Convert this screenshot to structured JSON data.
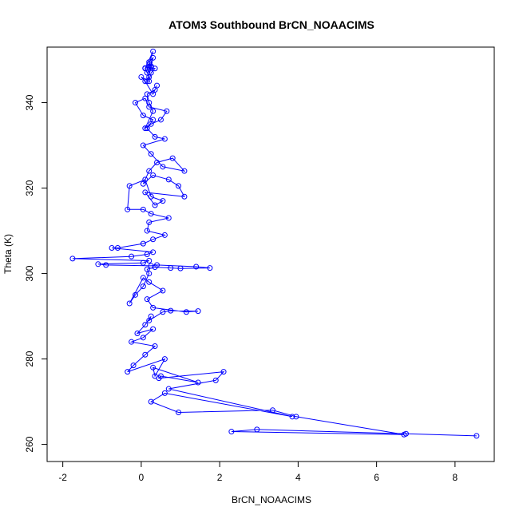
{
  "chart_data": {
    "type": "line",
    "title": "ATOM3 Southbound BrCN_NOAACIMS",
    "xlabel": "BrCN_NOAACIMS",
    "ylabel": "Theta (K)",
    "xlim": [
      -2.4,
      9.0
    ],
    "ylim": [
      256,
      353
    ],
    "x_ticks": [
      -2,
      0,
      2,
      4,
      6,
      8
    ],
    "y_ticks": [
      260,
      280,
      300,
      320,
      340
    ],
    "x_tick_labels": [
      "-2",
      "0",
      "2",
      "4",
      "6",
      "8"
    ],
    "y_tick_labels": [
      "260",
      "280",
      "300",
      "320",
      "340"
    ],
    "grid": false,
    "marker": "open-circle",
    "series": [
      {
        "color": "#0000ff",
        "x": [
          8.55,
          6.75,
          2.95,
          2.3,
          6.7,
          3.95,
          3.35,
          0.95,
          0.25,
          0.6,
          3.85,
          0.7,
          1.9,
          2.1,
          0.45,
          0.5,
          1.45,
          0.3,
          0.35,
          0.6,
          -0.35,
          -0.2,
          0.1,
          0.35,
          -0.25,
          0.05,
          0.3,
          -0.1,
          0.1,
          0.25,
          0.2,
          0.55,
          0.75,
          1.45,
          1.15,
          0.3,
          0.15,
          0.55,
          0.2,
          0.05,
          -0.3,
          -0.15,
          0.05,
          0.2,
          0.15,
          0.35,
          0.75,
          1.0,
          1.75,
          1.4,
          0.4,
          0.25,
          -0.9,
          -1.1,
          0.05,
          0.2,
          -1.75,
          -0.25,
          0.15,
          0.3,
          -0.75,
          -0.6,
          0.05,
          0.3,
          0.6,
          0.15,
          0.2,
          0.7,
          0.25,
          0.05,
          -0.35,
          -0.3,
          0.1,
          0.25,
          0.55,
          0.35,
          0.1,
          1.1,
          0.95,
          0.7,
          0.3,
          0.05,
          0.2,
          0.4,
          0.8,
          1.1,
          0.55,
          0.25,
          0.05,
          0.6,
          0.35,
          0.15,
          0.3,
          0.05,
          -0.15,
          0.1,
          0.2,
          0.65,
          0.5,
          0.25,
          0.1,
          0.3,
          0.2,
          0.15,
          0.35,
          0.4,
          0.3,
          0.1,
          0.0,
          0.2,
          0.25,
          0.35,
          0.2,
          0.1,
          0.15,
          0.25,
          0.2,
          0.3,
          0.25,
          0.15,
          0.2,
          0.1,
          0.3,
          0.2,
          0.25
        ],
        "y": [
          262,
          262.5,
          263.5,
          263,
          262.3,
          266.5,
          268,
          267.5,
          270,
          272,
          266.5,
          273,
          275,
          277,
          275.5,
          276,
          274.5,
          278,
          276,
          280,
          277,
          278.5,
          281,
          283,
          284,
          285,
          287,
          286,
          288,
          290,
          289,
          291,
          291.3,
          291.2,
          291,
          292,
          294,
          296,
          298,
          299,
          293,
          295,
          297,
          300,
          301,
          301.5,
          301.3,
          301.2,
          301.3,
          301.6,
          302,
          301.8,
          302,
          302.2,
          302.5,
          303,
          303.5,
          304,
          304.5,
          305,
          306,
          306,
          307,
          308,
          309,
          310,
          312,
          313,
          314,
          315,
          315,
          320.5,
          322,
          318,
          317,
          316,
          319,
          318,
          320.5,
          322,
          323,
          321,
          324,
          326,
          327,
          324,
          325,
          328,
          330,
          331.5,
          332,
          334,
          336,
          337,
          340,
          341,
          339,
          338,
          336,
          335,
          334,
          338,
          340,
          342,
          343,
          344,
          342,
          345,
          346,
          345,
          347,
          348,
          348.3,
          348.1,
          347,
          348.5,
          349.5,
          350.5,
          348.2,
          345,
          346,
          348,
          352,
          349,
          348.5
        ]
      }
    ]
  }
}
